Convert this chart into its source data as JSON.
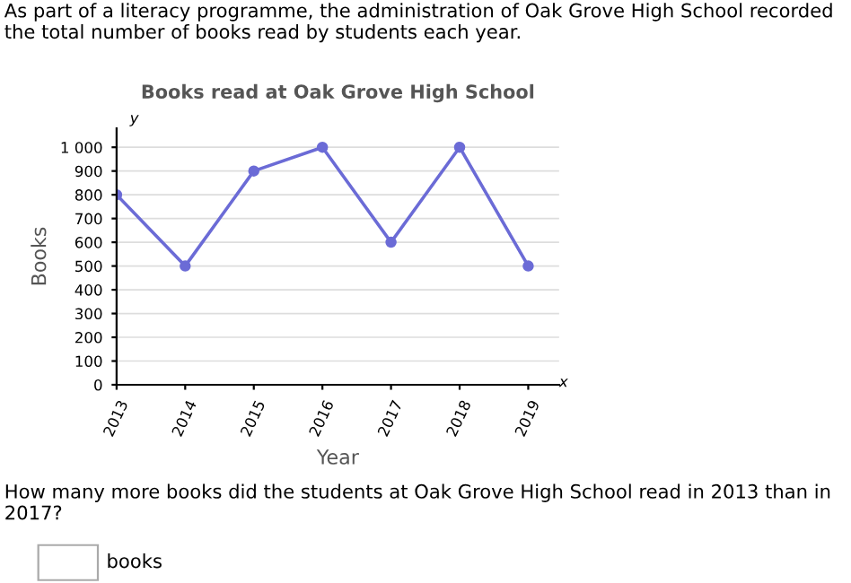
{
  "chart_data": {
    "type": "line",
    "title": "Books read at Oak Grove High School",
    "subtitle": "As part of a literacy programme, the administration of Oak Grove High School recorded the total number of books read by students each year.",
    "xlabel": "Year",
    "ylabel": "Books",
    "categories": [
      "2013",
      "2014",
      "2015",
      "2016",
      "2017",
      "2018",
      "2019"
    ],
    "series": [
      {
        "color": "#6b6bd6",
        "values": [
          800,
          500,
          900,
          1000,
          600,
          1000,
          500
        ]
      }
    ],
    "ylim": [
      0,
      1080
    ],
    "yticks": [
      0,
      100,
      200,
      300,
      400,
      500,
      600,
      700,
      800,
      900,
      {
        "value": 1000,
        "label": "1 000"
      }
    ],
    "grid": "y",
    "marker": "circle",
    "line_style": "solid",
    "annotations": [
      "y",
      "x",
      "How many more books did the students at Oak Grove High School read in 2013 than in 2017?",
      "books"
    ]
  }
}
